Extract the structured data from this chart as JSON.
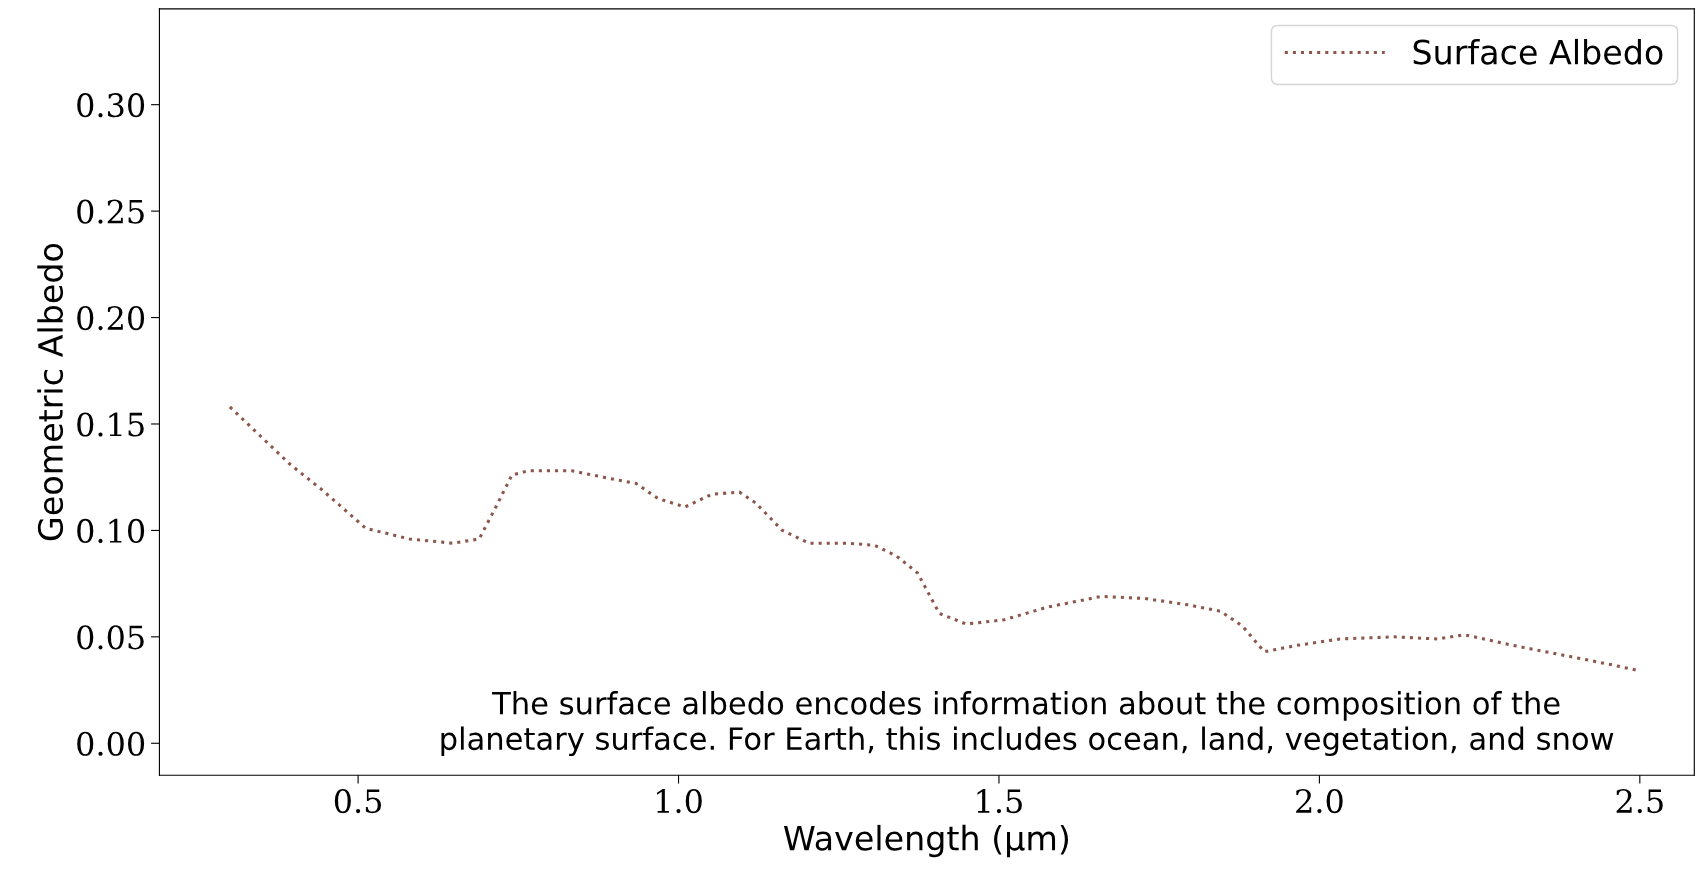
{
  "chart_data": {
    "type": "line",
    "xlabel": "Wavelength (µm)",
    "ylabel": "Geometric Albedo",
    "x": [
      0.3,
      0.394,
      0.444,
      0.512,
      0.58,
      0.647,
      0.689,
      0.715,
      0.74,
      0.765,
      0.833,
      0.883,
      0.934,
      0.968,
      1.01,
      1.052,
      1.095,
      1.12,
      1.162,
      1.204,
      1.264,
      1.306,
      1.34,
      1.373,
      1.407,
      1.449,
      1.508,
      1.576,
      1.66,
      1.728,
      1.796,
      1.846,
      1.88,
      1.914,
      1.965,
      2.032,
      2.116,
      2.184,
      2.226,
      2.302,
      2.387,
      2.454,
      2.5
    ],
    "series": [
      {
        "name": "Surface Albedo",
        "color": "#8c564b",
        "values": [
          0.158,
          0.131,
          0.119,
          0.101,
          0.096,
          0.094,
          0.096,
          0.111,
          0.126,
          0.128,
          0.128,
          0.125,
          0.122,
          0.115,
          0.111,
          0.117,
          0.118,
          0.113,
          0.1,
          0.094,
          0.094,
          0.093,
          0.088,
          0.08,
          0.061,
          0.056,
          0.058,
          0.064,
          0.069,
          0.068,
          0.065,
          0.062,
          0.055,
          0.043,
          0.046,
          0.049,
          0.05,
          0.049,
          0.051,
          0.046,
          0.041,
          0.037,
          0.034
        ]
      }
    ],
    "line_style": "dotted",
    "marker": "none",
    "legend": "top right",
    "grid": false,
    "xlim": [
      0.19,
      2.585
    ],
    "ylim": [
      -0.015,
      0.345
    ],
    "xticks": [
      0.5,
      {
        "value": 1,
        "label": "1.0"
      },
      1.5,
      {
        "value": 2,
        "label": "2.0"
      },
      2.5
    ],
    "yticks": [
      {
        "value": 0,
        "label": "0.00"
      },
      {
        "value": 0.05,
        "label": "0.05"
      },
      {
        "value": 0.1,
        "label": "0.10"
      },
      {
        "value": 0.15,
        "label": "0.15"
      },
      {
        "value": 0.2,
        "label": "0.20"
      },
      {
        "value": 0.25,
        "label": "0.25"
      },
      {
        "value": 0.3,
        "label": "0.30"
      }
    ],
    "annotations": [
      "The surface albedo encodes information about the composition of the\nplanetary surface. For Earth, this includes ocean, land, vegetation, and snow"
    ]
  }
}
